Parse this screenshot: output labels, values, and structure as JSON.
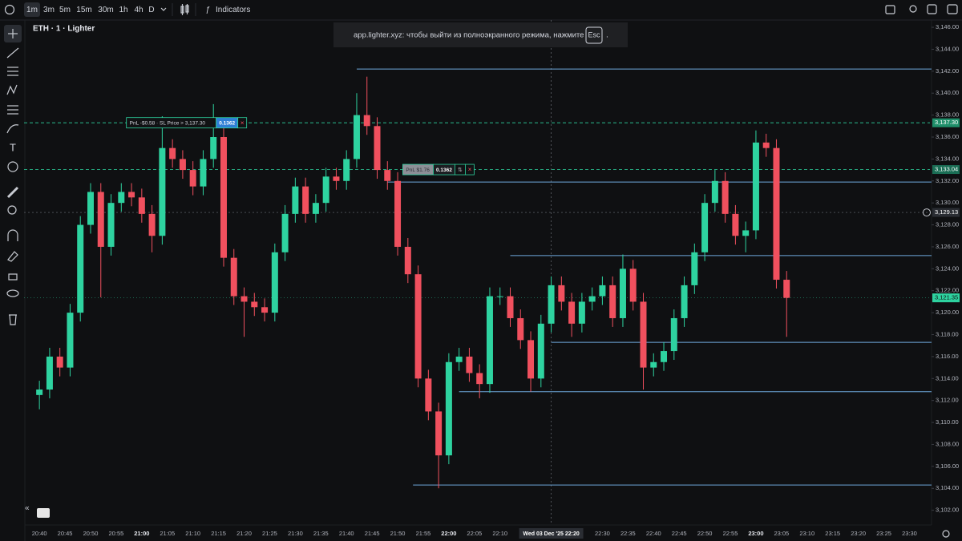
{
  "toolbar": {
    "intervals": [
      "1m",
      "3m",
      "5m",
      "15m",
      "30m",
      "1h",
      "4h",
      "D"
    ],
    "indicators": "Indicators"
  },
  "symbol": "ETH · 1 · Lighter",
  "notice": {
    "text": "app.lighter.xyz: чтобы выйти из полноэкранного режима, нажмите",
    "key": "Esc",
    "end": "."
  },
  "chart_data": {
    "type": "candlestick",
    "up_color": "#2ed3a0",
    "down_color": "#f0505e",
    "x": [
      "20:40",
      "20:42",
      "20:44",
      "20:46",
      "20:48",
      "20:50",
      "20:52",
      "20:54",
      "20:56",
      "20:58",
      "21:00",
      "21:02",
      "21:04",
      "21:06",
      "21:08",
      "21:10",
      "21:12",
      "21:14",
      "21:16",
      "21:18",
      "21:20",
      "21:22",
      "21:24",
      "21:26",
      "21:28",
      "21:30",
      "21:32",
      "21:34",
      "21:36",
      "21:38",
      "21:40",
      "21:42",
      "21:44",
      "21:46",
      "21:48",
      "21:50",
      "21:52",
      "21:54",
      "21:56",
      "21:58",
      "22:00",
      "22:02",
      "22:04",
      "22:06",
      "22:08",
      "22:10",
      "22:12",
      "22:14",
      "22:16",
      "22:18",
      "22:20",
      "22:22",
      "22:24",
      "22:26",
      "22:28",
      "22:30",
      "22:32",
      "22:34",
      "22:36",
      "22:38",
      "22:40",
      "22:42",
      "22:44",
      "22:46",
      "22:48",
      "22:50",
      "22:52",
      "22:54",
      "22:56",
      "22:58",
      "23:00",
      "23:02",
      "23:04",
      "23:06"
    ],
    "open": [
      3112.5,
      3113,
      3116,
      3115,
      3120,
      3128,
      3131,
      3126,
      3130,
      3131,
      3130.5,
      3129,
      3127,
      3135,
      3134,
      3133,
      3131.5,
      3134,
      3136,
      3125,
      3121.5,
      3121,
      3120.5,
      3120,
      3125.5,
      3129,
      3131.5,
      3129,
      3130,
      3132.4,
      3132,
      3134,
      3138,
      3137,
      3133,
      3132,
      3126,
      3123.5,
      3114,
      3111,
      3107,
      3115.5,
      3116,
      3114.5,
      3113.5,
      3121.5,
      3121.5,
      3119.5,
      3117.5,
      3114,
      3119,
      3122.5,
      3121,
      3119,
      3121,
      3121.5,
      3122.5,
      3119.5,
      3124,
      3121,
      3115,
      3115.5,
      3116.5,
      3119.5,
      3122.5,
      3125.5,
      3130,
      3132,
      3129,
      3127,
      3127.5,
      3135.5,
      3135,
      3123
    ],
    "high": [
      3113.8,
      3116.8,
      3116.8,
      3120.8,
      3128.8,
      3131.8,
      3131.8,
      3130.8,
      3131.8,
      3131.8,
      3131.3,
      3129.8,
      3137.9,
      3135.8,
      3134.8,
      3133.8,
      3134.8,
      3139,
      3136.8,
      3125.8,
      3122.3,
      3121.8,
      3121.3,
      3126.3,
      3129.8,
      3132.3,
      3132.3,
      3130.8,
      3133.2,
      3133.2,
      3134.8,
      3140,
      3141.5,
      3137.8,
      3133.8,
      3132.8,
      3126.8,
      3124.3,
      3114.8,
      3111.8,
      3116.3,
      3116.8,
      3116.8,
      3115.3,
      3122.3,
      3122.3,
      3122.3,
      3120.3,
      3118.3,
      3119.8,
      3123.3,
      3123.3,
      3121.8,
      3121.8,
      3122.3,
      3123.3,
      3123.3,
      3125.3,
      3124.8,
      3121.8,
      3116.3,
      3117.3,
      3120.3,
      3123.3,
      3126.3,
      3130.8,
      3133,
      3132.8,
      3129.8,
      3128.3,
      3136.6,
      3136.3,
      3135.8,
      3123.8
    ],
    "low": [
      3111.2,
      3112.2,
      3114.2,
      3114.2,
      3119.2,
      3127.2,
      3121.4,
      3125.2,
      3129.2,
      3129.7,
      3128.2,
      3125.5,
      3126.2,
      3133.2,
      3132.2,
      3130.7,
      3130.7,
      3133.2,
      3124.2,
      3120.7,
      3117.8,
      3119.7,
      3119.2,
      3119.2,
      3124.7,
      3128.2,
      3128.2,
      3128.2,
      3129.2,
      3131.2,
      3131.2,
      3133.2,
      3136.2,
      3132.2,
      3131.2,
      3125.2,
      3122.7,
      3113.2,
      3110.2,
      3104,
      3106.2,
      3114.7,
      3113.7,
      3112.2,
      3112.7,
      3120.7,
      3118.7,
      3116.7,
      3112.8,
      3113.2,
      3118.2,
      3120.2,
      3117.8,
      3118.2,
      3120.2,
      3120.7,
      3118.7,
      3118.7,
      3120.2,
      3113,
      3114.2,
      3114.7,
      3115.7,
      3118.7,
      3121.7,
      3124.7,
      3129.2,
      3128.2,
      3126.2,
      3125.5,
      3126.7,
      3134.2,
      3122.2,
      3117.8
    ],
    "close": [
      3113,
      3116,
      3115,
      3120,
      3128,
      3131,
      3126,
      3130,
      3131,
      3130.5,
      3129,
      3127,
      3135,
      3134,
      3133,
      3131.5,
      3134,
      3136,
      3125,
      3121.5,
      3121,
      3120.5,
      3120,
      3125.5,
      3129,
      3131.5,
      3129,
      3130,
      3132.4,
      3132,
      3134,
      3138,
      3137,
      3133,
      3132,
      3126,
      3123.5,
      3114,
      3111,
      3107,
      3115.5,
      3116,
      3114.5,
      3113.5,
      3121.5,
      3121.5,
      3119.5,
      3117.5,
      3114,
      3119,
      3122.5,
      3121,
      3119,
      3121,
      3121.5,
      3122.5,
      3119.5,
      3124,
      3121,
      3115,
      3115.5,
      3116.5,
      3119.5,
      3122.5,
      3125.5,
      3130,
      3132,
      3129,
      3127,
      3127.5,
      3135.5,
      3135,
      3123,
      3121.35
    ],
    "xlim": [
      "20:37",
      "23:34"
    ],
    "ylim": [
      3100.66,
      3146.66
    ],
    "xticks": [
      "20:40",
      "20:45",
      "20:50",
      "20:55",
      "21:00",
      "21:05",
      "21:10",
      "21:15",
      "21:20",
      "21:25",
      "21:30",
      "21:35",
      "21:40",
      "21:45",
      "21:50",
      "21:55",
      "22:00",
      "22:05",
      "22:10",
      "22:30",
      "22:35",
      "22:40",
      "22:45",
      "22:50",
      "22:55",
      "23:00",
      "23:05",
      "23:10",
      "23:15",
      "23:20",
      "23:25",
      "23:30"
    ],
    "yticks": [
      {
        "value": 3146,
        "label": "3,146.00"
      },
      {
        "value": 3144,
        "label": "3,144.00"
      },
      {
        "value": 3142,
        "label": "3,142.00"
      },
      {
        "value": 3140,
        "label": "3,140.00"
      },
      {
        "value": 3138,
        "label": "3,138.00"
      },
      {
        "value": 3136,
        "label": "3,136.00"
      },
      {
        "value": 3134,
        "label": "3,134.00"
      },
      {
        "value": 3132,
        "label": "3,132.00"
      },
      {
        "value": 3130,
        "label": "3,130.00"
      },
      {
        "value": 3128,
        "label": "3,128.00"
      },
      {
        "value": 3126,
        "label": "3,126.00"
      },
      {
        "value": 3124,
        "label": "3,124.00"
      },
      {
        "value": 3122,
        "label": "3,122.00"
      },
      {
        "value": 3120,
        "label": "3,120.00"
      },
      {
        "value": 3118,
        "label": "3,118.00"
      },
      {
        "value": 3116,
        "label": "3,116.00"
      },
      {
        "value": 3114,
        "label": "3,114.00"
      },
      {
        "value": 3112,
        "label": "3,112.00"
      },
      {
        "value": 3110,
        "label": "3,110.00"
      },
      {
        "value": 3108,
        "label": "3,108.00"
      },
      {
        "value": 3106,
        "label": "3,106.00"
      },
      {
        "value": 3104,
        "label": "3,104.00"
      },
      {
        "value": 3102,
        "label": "3,102.00"
      }
    ],
    "hline_color": "#6fa8dc",
    "hlines": [
      {
        "value": 3142.2,
        "from": "21:42"
      },
      {
        "value": 3131.9,
        "from": "21:48"
      },
      {
        "value": 3125.2,
        "from": "22:12"
      },
      {
        "value": 3117.3,
        "from": "22:20"
      },
      {
        "value": 3112.8,
        "from": "22:02"
      },
      {
        "value": 3104.3,
        "from": "21:53"
      }
    ],
    "orders": [
      {
        "value": 3137.3,
        "label": "3,137.30",
        "color": "#1f8f6a",
        "at": "20:57",
        "pnl": "PnL -$0.58 · SL Price > 3,137.30",
        "qty": "0.1362",
        "qty_color": "#2f7fd6",
        "close": "×"
      },
      {
        "value": 3133.04,
        "label": "3,133.04",
        "color": "#1a6e55",
        "at": "21:51",
        "pnl": "PnL $1.76",
        "qty": "0.1362",
        "qty_color": "#1c1e22",
        "swap": "⇅",
        "close": "×"
      }
    ],
    "last_price": {
      "value": 3121.35,
      "label": "3,121.35",
      "color": "#2ed3a0"
    },
    "crosshair": {
      "time": "22:20",
      "time_label": "Wed 03 Dec '25  22:20",
      "price": 3129.13,
      "price_label": "3,129.13"
    }
  }
}
